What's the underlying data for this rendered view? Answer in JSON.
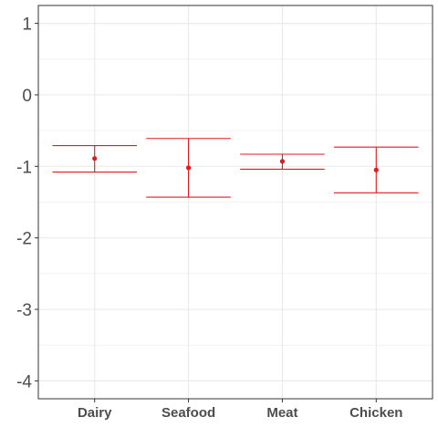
{
  "chart_data": {
    "type": "errorbar",
    "categories": [
      "Dairy",
      "Seafood",
      "Meat",
      "Chicken"
    ],
    "series": [
      {
        "values": [
          -0.89,
          -1.02,
          -0.93,
          -1.05
        ],
        "lower": [
          -1.08,
          -1.43,
          -1.04,
          -1.37
        ],
        "upper": [
          -0.71,
          -0.61,
          -0.83,
          -0.73
        ]
      }
    ],
    "ylim": [
      -4.25,
      1.25
    ],
    "yticks": [
      1,
      0,
      -1,
      -2,
      -3,
      -4
    ],
    "ytick_labels": [
      "1",
      "0",
      "-1",
      "-2",
      "-3",
      "-4"
    ],
    "grid": true,
    "color": "#e41a1c",
    "xlabel": "",
    "ylabel": "",
    "title": ""
  }
}
